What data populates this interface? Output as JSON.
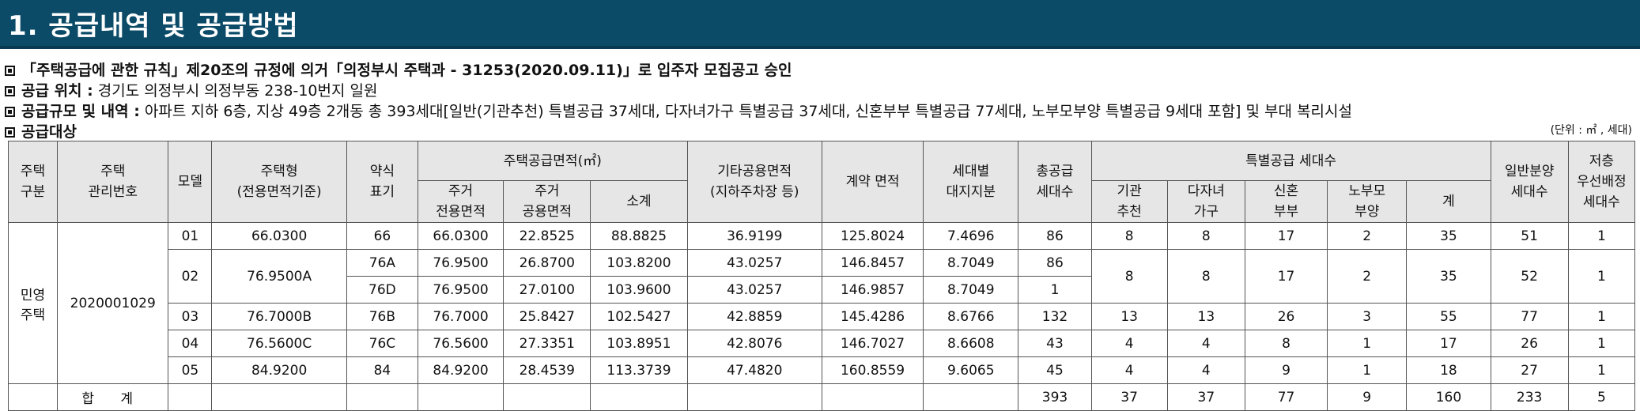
{
  "banner": {
    "title": "1. 공급내역 및 공급방법"
  },
  "info": {
    "line1": "「주택공급에 관한 규칙」제20조의 규정에 의거「의정부시 주택과 - 31253(2020.09.11)」로 입주자 모집공고 승인",
    "line2_label": "공급 위치 :",
    "line2_value": "경기도 의정부시 의정부동 238-10번지 일원",
    "line3_label": "공급규모 및 내역 :",
    "line3_value": "아파트 지하 6층, 지상 49층 2개동 총 393세대[일반(기관추천) 특별공급 37세대, 다자녀가구 특별공급 37세대, 신혼부부 특별공급 77세대, 노부모부양 특별공급 9세대 포함] 및 부대 복리시설",
    "line4_label": "공급대상"
  },
  "unit_note": "(단위 : ㎡ , 세대)",
  "table": {
    "headers": {
      "housing_type": "주택\n구분",
      "mgmt_no": "주택\n관리번호",
      "model": "모델",
      "house_type": "주택형\n(전용면적기준)",
      "abbr": "약식\n표기",
      "supply_area": "주택공급면적(㎡)",
      "exclusive": "주거\n전용면적",
      "common": "주거\n공용면적",
      "subtotal": "소계",
      "other_common": "기타공용면적\n(지하주차장 등)",
      "contract_area": "계약 면적",
      "land_share": "세대별\n대지지분",
      "total_units": "총공급\n세대수",
      "special": "특별공급 세대수",
      "institution": "기관\n추천",
      "multichild": "다자녀\n가구",
      "newlywed": "신혼\n부부",
      "elderly": "노부모\n부양",
      "special_sum": "계",
      "general": "일반분양\n세대수",
      "low_floor": "저층\n우선배정\n세대수"
    },
    "housing_type": "민영\n주택",
    "mgmt_no": "2020001029",
    "rows": [
      {
        "model": "01",
        "type": "66.0300",
        "abbr": "66",
        "excl": "66.0300",
        "common": "22.8525",
        "sub": "88.8825",
        "other": "36.9199",
        "contract": "125.8024",
        "land": "7.4696",
        "total": "86",
        "inst": "8",
        "multi": "8",
        "newly": "17",
        "elder": "2",
        "sum": "35",
        "general": "51",
        "low": "1"
      },
      {
        "model": "02",
        "type": "76.9500A",
        "abbr": "76A",
        "excl": "76.9500",
        "common": "26.8700",
        "sub": "103.8200",
        "other": "43.0257",
        "contract": "146.8457",
        "land": "8.7049",
        "total": "86",
        "inst": "8",
        "multi": "8",
        "newly": "17",
        "elder": "2",
        "sum": "35",
        "general": "52",
        "low": "1"
      },
      {
        "abbr": "76D",
        "excl": "76.9500",
        "common": "27.0100",
        "sub": "103.9600",
        "other": "43.0257",
        "contract": "146.9857",
        "land": "8.7049",
        "total": "1"
      },
      {
        "model": "03",
        "type": "76.7000B",
        "abbr": "76B",
        "excl": "76.7000",
        "common": "25.8427",
        "sub": "102.5427",
        "other": "42.8859",
        "contract": "145.4286",
        "land": "8.6766",
        "total": "132",
        "inst": "13",
        "multi": "13",
        "newly": "26",
        "elder": "3",
        "sum": "55",
        "general": "77",
        "low": "1"
      },
      {
        "model": "04",
        "type": "76.5600C",
        "abbr": "76C",
        "excl": "76.5600",
        "common": "27.3351",
        "sub": "103.8951",
        "other": "42.8076",
        "contract": "146.7027",
        "land": "8.6608",
        "total": "43",
        "inst": "4",
        "multi": "4",
        "newly": "8",
        "elder": "1",
        "sum": "17",
        "general": "26",
        "low": "1"
      },
      {
        "model": "05",
        "type": "84.9200",
        "abbr": "84",
        "excl": "84.9200",
        "common": "28.4539",
        "sub": "113.3739",
        "other": "47.4820",
        "contract": "160.8559",
        "land": "9.6065",
        "total": "45",
        "inst": "4",
        "multi": "4",
        "newly": "9",
        "elder": "1",
        "sum": "18",
        "general": "27",
        "low": "1"
      }
    ],
    "totals": {
      "label": "합 계",
      "total": "393",
      "inst": "37",
      "multi": "37",
      "newly": "77",
      "elder": "9",
      "sum": "160",
      "general": "233",
      "low": "5"
    }
  }
}
